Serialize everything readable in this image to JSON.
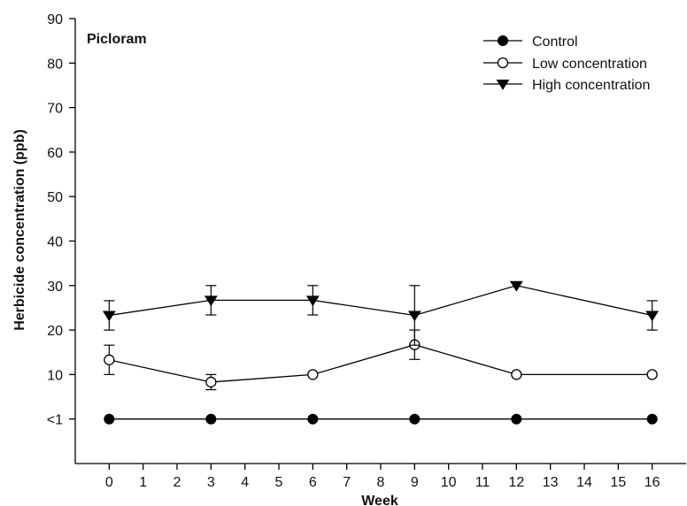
{
  "chart_data": {
    "type": "line",
    "panel_label": "Picloram",
    "xlabel": "Week",
    "ylabel": "Herbicide concentration (ppb)",
    "x_ticks": [
      0,
      1,
      2,
      3,
      4,
      5,
      6,
      7,
      8,
      9,
      10,
      11,
      12,
      13,
      14,
      15,
      16
    ],
    "y_ticks": [
      {
        "value": 0,
        "label": "<1"
      },
      {
        "value": 10,
        "label": "10"
      },
      {
        "value": 20,
        "label": "20"
      },
      {
        "value": 30,
        "label": "30"
      },
      {
        "value": 40,
        "label": "40"
      },
      {
        "value": 50,
        "label": "50"
      },
      {
        "value": 60,
        "label": "60"
      },
      {
        "value": 70,
        "label": "70"
      },
      {
        "value": 80,
        "label": "80"
      },
      {
        "value": 90,
        "label": "90"
      }
    ],
    "xlim": [
      -1,
      17
    ],
    "ylim": [
      -10,
      90
    ],
    "grid": false,
    "legend_position": "top-right",
    "series": [
      {
        "name": "Control",
        "marker": "filled-circle",
        "color": "#000000",
        "x": [
          0,
          3,
          6,
          9,
          12,
          16
        ],
        "y": [
          0,
          0,
          0,
          0,
          0,
          0
        ],
        "err": [
          0,
          0,
          0,
          0,
          0,
          0
        ]
      },
      {
        "name": "Low concentration",
        "marker": "open-circle",
        "color": "#000000",
        "x": [
          0,
          3,
          6,
          9,
          12,
          16
        ],
        "y": [
          13.3,
          8.3,
          10,
          16.7,
          10,
          10
        ],
        "err": [
          3.3,
          1.7,
          0,
          3.3,
          0,
          0
        ]
      },
      {
        "name": "High concentration",
        "marker": "down-triangle",
        "color": "#000000",
        "x": [
          0,
          3,
          6,
          9,
          12,
          16
        ],
        "y": [
          23.3,
          26.7,
          26.7,
          23.3,
          30,
          23.3
        ],
        "err": [
          3.3,
          3.3,
          3.3,
          6.7,
          0,
          3.3
        ]
      }
    ]
  }
}
